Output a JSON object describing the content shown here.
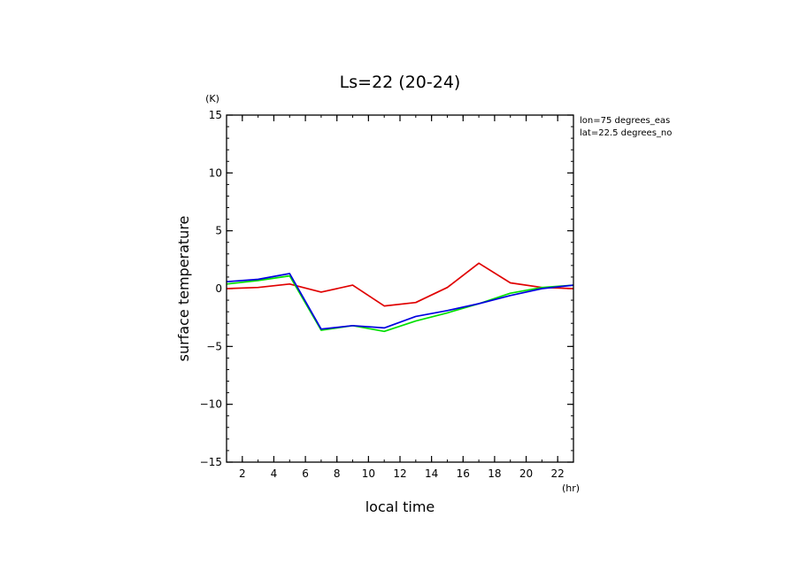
{
  "chart_data": {
    "type": "line",
    "title": "Ls=22 (20-24)",
    "xlabel": "local time",
    "ylabel": "surface temperature",
    "x_unit": "(hr)",
    "y_unit": "(K)",
    "xlim": [
      1,
      23
    ],
    "ylim": [
      -15,
      15
    ],
    "x_ticks": [
      2,
      4,
      6,
      8,
      10,
      12,
      14,
      16,
      18,
      20,
      22
    ],
    "y_ticks": [
      -15,
      -10,
      -5,
      0,
      5,
      10,
      15
    ],
    "x_tick_labels": [
      "2",
      "4",
      "6",
      "8",
      "10",
      "12",
      "14",
      "16",
      "18",
      "20",
      "22"
    ],
    "y_tick_labels": [
      "−15",
      "−10",
      "−5",
      "0",
      "5",
      "10",
      "15"
    ],
    "annotations": [
      "lon=75 degrees_eas",
      "lat=22.5 degrees_no"
    ],
    "grid": false,
    "series": [
      {
        "color": "#e00000",
        "x": [
          1,
          3,
          5,
          7,
          9,
          11,
          13,
          15,
          17,
          19,
          21,
          23
        ],
        "y": [
          0.0,
          0.1,
          0.4,
          -0.3,
          0.3,
          -1.5,
          -1.2,
          0.1,
          2.2,
          0.5,
          0.1,
          0.0
        ]
      },
      {
        "color": "#00e000",
        "x": [
          1,
          3,
          5,
          7,
          9,
          11,
          13,
          15,
          17,
          19,
          21,
          23
        ],
        "y": [
          0.4,
          0.7,
          1.1,
          -3.6,
          -3.2,
          -3.7,
          -2.8,
          -2.1,
          -1.3,
          -0.4,
          0.1,
          0.3
        ]
      },
      {
        "color": "#0000e0",
        "x": [
          1,
          3,
          5,
          7,
          9,
          11,
          13,
          15,
          17,
          19,
          21,
          23
        ],
        "y": [
          0.6,
          0.8,
          1.3,
          -3.5,
          -3.2,
          -3.4,
          -2.4,
          -1.9,
          -1.3,
          -0.6,
          0.0,
          0.3
        ]
      }
    ]
  }
}
